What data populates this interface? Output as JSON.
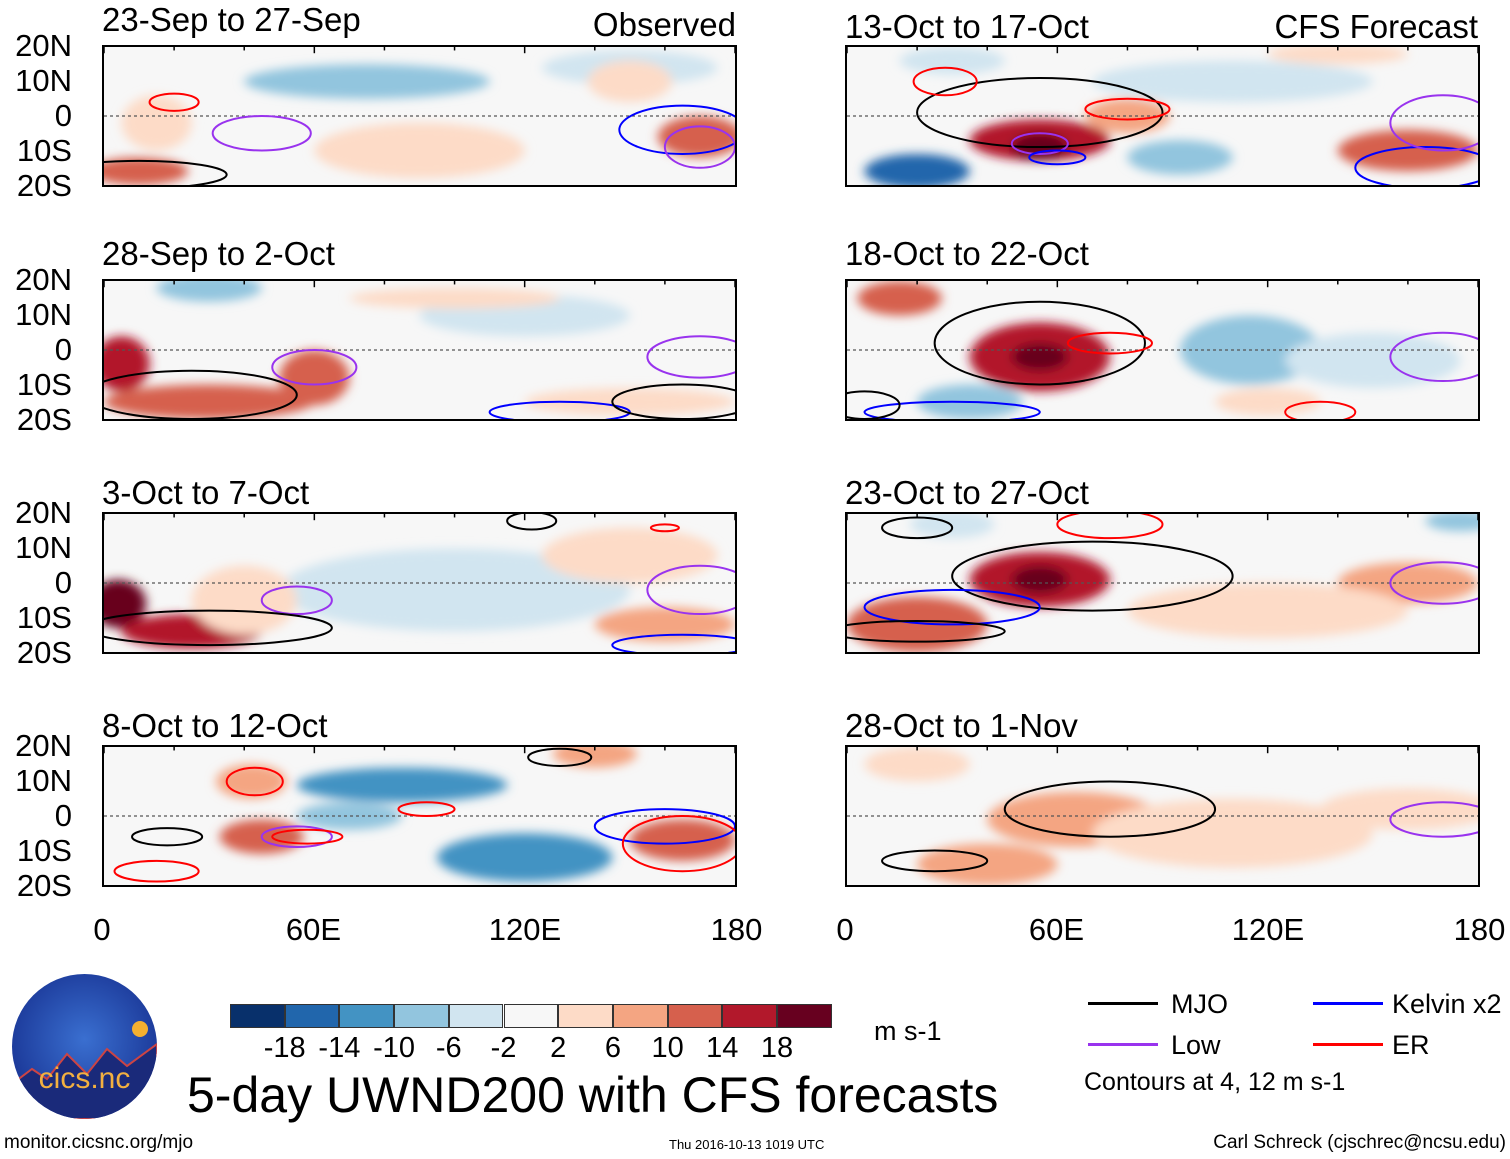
{
  "header": {
    "left_tag": "Observed",
    "right_tag": "CFS Forecast"
  },
  "colors": {
    "-18": "#08306b",
    "-14": "#2166ac",
    "-10": "#4393c3",
    "-6": "#92c5de",
    "-2": "#d1e5f0",
    "0": "#f7f7f7",
    "2": "#fddbc7",
    "6": "#f4a582",
    "10": "#d6604d",
    "14": "#b2182b",
    "18": "#67001f",
    "MJO": "#000000",
    "Kelvin": "#0000ff",
    "Low": "#9933ee",
    "ER": "#ff0000"
  },
  "axes": {
    "y_ticks": [
      "20N",
      "10N",
      "0",
      "10S",
      "20S"
    ],
    "x_ticks": [
      "0",
      "60E",
      "120E",
      "180"
    ]
  },
  "chart_data": {
    "type": "heatmap",
    "title": "5-day UWND200 with CFS forecasts",
    "units": "m s-1",
    "lon_range": [
      0,
      180
    ],
    "lat_range": [
      -20,
      20
    ],
    "colorbar": {
      "levels": [
        "-18",
        "-14",
        "-10",
        "-6",
        "-2",
        "2",
        "6",
        "10",
        "14",
        "18"
      ],
      "colors": [
        "#08306b",
        "#2166ac",
        "#4393c3",
        "#92c5de",
        "#d1e5f0",
        "#f7f7f7",
        "#fddbc7",
        "#f4a582",
        "#d6604d",
        "#b2182b",
        "#67001f"
      ]
    },
    "panels": [
      {
        "title": "23-Sep to 27-Sep",
        "type": "Observed",
        "anoms": [
          [
            75,
            10,
            35,
            5,
            -6
          ],
          [
            150,
            14,
            25,
            5,
            -2
          ],
          [
            170,
            -6,
            12,
            6,
            10
          ],
          [
            10,
            -16,
            14,
            4,
            10
          ],
          [
            90,
            -10,
            30,
            8,
            2
          ],
          [
            150,
            10,
            12,
            6,
            2
          ],
          [
            15,
            -2,
            10,
            8,
            2
          ]
        ],
        "contours": [
          [
            "ER",
            20,
            4,
            7,
            2.5
          ],
          [
            "Low",
            45,
            -5,
            14,
            5
          ],
          [
            "Kelvin",
            165,
            -4,
            18,
            7
          ],
          [
            "MJO",
            10,
            -17,
            25,
            4
          ],
          [
            "Low",
            170,
            -9,
            10,
            6
          ]
        ]
      },
      {
        "title": "28-Sep to 2-Oct",
        "type": "Observed",
        "anoms": [
          [
            5,
            -4,
            8,
            8,
            14
          ],
          [
            30,
            -15,
            30,
            5,
            10
          ],
          [
            60,
            -8,
            10,
            8,
            10
          ],
          [
            30,
            18,
            15,
            4,
            -6
          ],
          [
            120,
            10,
            30,
            6,
            -2
          ],
          [
            150,
            -15,
            30,
            4,
            2
          ],
          [
            100,
            15,
            30,
            3,
            2
          ]
        ],
        "contours": [
          [
            "MJO",
            25,
            -13,
            30,
            7
          ],
          [
            "Low",
            60,
            -5,
            12,
            5
          ],
          [
            "Kelvin",
            130,
            -18,
            20,
            3
          ],
          [
            "MJO",
            165,
            -15,
            20,
            5
          ],
          [
            "Low",
            170,
            -2,
            15,
            6
          ]
        ]
      },
      {
        "title": "3-Oct to 7-Oct",
        "type": "Observed",
        "anoms": [
          [
            4,
            -6,
            8,
            7,
            18
          ],
          [
            25,
            -14,
            20,
            5,
            14
          ],
          [
            100,
            -2,
            50,
            12,
            -2
          ],
          [
            160,
            -12,
            20,
            5,
            6
          ],
          [
            150,
            8,
            25,
            8,
            2
          ],
          [
            40,
            -5,
            15,
            10,
            2
          ]
        ],
        "contours": [
          [
            "Low",
            55,
            -5,
            10,
            4
          ],
          [
            "MJO",
            30,
            -13,
            35,
            5
          ],
          [
            "MJO",
            122,
            18,
            7,
            2.5
          ],
          [
            "Kelvin",
            165,
            -18,
            20,
            3
          ],
          [
            "Low",
            170,
            -2,
            15,
            7
          ],
          [
            "ER",
            160,
            16,
            4,
            1
          ]
        ]
      },
      {
        "title": "8-Oct to 12-Oct",
        "type": "Observed",
        "anoms": [
          [
            85,
            9,
            30,
            5,
            -10
          ],
          [
            120,
            -12,
            25,
            7,
            -10
          ],
          [
            45,
            -6,
            12,
            5,
            10
          ],
          [
            165,
            -7,
            15,
            6,
            10
          ],
          [
            42,
            10,
            10,
            5,
            6
          ],
          [
            140,
            18,
            12,
            4,
            6
          ],
          [
            70,
            0,
            15,
            4,
            -6
          ]
        ],
        "contours": [
          [
            "ER",
            43,
            10,
            8,
            4
          ],
          [
            "Low",
            55,
            -6,
            10,
            3
          ],
          [
            "ER",
            58,
            -6,
            10,
            2
          ],
          [
            "MJO",
            18,
            -6,
            10,
            2.5
          ],
          [
            "ER",
            92,
            2,
            8,
            2
          ],
          [
            "Kelvin",
            160,
            -3,
            20,
            5
          ],
          [
            "ER",
            165,
            -8,
            17,
            8
          ],
          [
            "MJO",
            130,
            17,
            9,
            2.5
          ],
          [
            "ER",
            15,
            -16,
            12,
            3
          ]
        ]
      },
      {
        "title": "13-Oct to 17-Oct",
        "type": "CFS Forecast",
        "anoms": [
          [
            55,
            -7,
            20,
            6,
            14
          ],
          [
            55,
            -9,
            8,
            4,
            18
          ],
          [
            20,
            -16,
            15,
            5,
            -14
          ],
          [
            95,
            -12,
            15,
            5,
            -6
          ],
          [
            160,
            -10,
            20,
            6,
            10
          ],
          [
            80,
            0,
            12,
            5,
            6
          ],
          [
            30,
            16,
            15,
            4,
            -2
          ],
          [
            110,
            10,
            40,
            6,
            -2
          ],
          [
            140,
            18,
            20,
            3,
            2
          ]
        ],
        "contours": [
          [
            "MJO",
            55,
            1,
            35,
            10
          ],
          [
            "Low",
            55,
            -8,
            8,
            3
          ],
          [
            "ER",
            28,
            10,
            9,
            4
          ],
          [
            "ER",
            80,
            2,
            12,
            3
          ],
          [
            "Kelvin",
            60,
            -12,
            8,
            2
          ],
          [
            "Kelvin",
            165,
            -15,
            20,
            6
          ],
          [
            "Low",
            170,
            -2,
            15,
            8
          ]
        ]
      },
      {
        "title": "18-Oct to 22-Oct",
        "type": "CFS Forecast",
        "anoms": [
          [
            55,
            -2,
            20,
            10,
            14
          ],
          [
            55,
            -2,
            8,
            4,
            18
          ],
          [
            15,
            15,
            12,
            5,
            10
          ],
          [
            35,
            -15,
            15,
            5,
            -6
          ],
          [
            115,
            0,
            20,
            10,
            -6
          ],
          [
            150,
            -3,
            25,
            8,
            -2
          ],
          [
            120,
            -15,
            15,
            4,
            2
          ]
        ],
        "contours": [
          [
            "MJO",
            55,
            2,
            30,
            12
          ],
          [
            "ER",
            75,
            2,
            12,
            3
          ],
          [
            "Kelvin",
            30,
            -18,
            25,
            3
          ],
          [
            "ER",
            135,
            -18,
            10,
            3
          ],
          [
            "Low",
            170,
            -2,
            15,
            7
          ],
          [
            "MJO",
            5,
            -16,
            10,
            4
          ]
        ]
      },
      {
        "title": "23-Oct to 27-Oct",
        "type": "CFS Forecast",
        "anoms": [
          [
            55,
            1,
            20,
            8,
            14
          ],
          [
            55,
            1,
            8,
            4,
            18
          ],
          [
            20,
            -12,
            20,
            8,
            10
          ],
          [
            160,
            0,
            20,
            6,
            6
          ],
          [
            120,
            -8,
            40,
            8,
            2
          ],
          [
            30,
            17,
            12,
            4,
            -2
          ],
          [
            175,
            18,
            10,
            3,
            -6
          ]
        ],
        "contours": [
          [
            "MJO",
            70,
            2,
            40,
            10
          ],
          [
            "Kelvin",
            30,
            -7,
            25,
            5
          ],
          [
            "MJO",
            20,
            -14,
            25,
            3
          ],
          [
            "ER",
            75,
            17,
            15,
            4
          ],
          [
            "Low",
            170,
            0,
            15,
            6
          ],
          [
            "MJO",
            20,
            16,
            10,
            3
          ]
        ]
      },
      {
        "title": "28-Oct to 1-Nov",
        "type": "CFS Forecast",
        "anoms": [
          [
            65,
            -1,
            25,
            8,
            6
          ],
          [
            40,
            -14,
            20,
            6,
            6
          ],
          [
            160,
            2,
            25,
            6,
            2
          ],
          [
            110,
            -5,
            40,
            10,
            2
          ],
          [
            20,
            15,
            15,
            5,
            2
          ]
        ],
        "contours": [
          [
            "MJO",
            75,
            2,
            30,
            8
          ],
          [
            "MJO",
            25,
            -13,
            15,
            3
          ],
          [
            "Low",
            170,
            -1,
            15,
            5
          ]
        ]
      }
    ]
  },
  "legend": {
    "mjo": "MJO",
    "kelvin": "Kelvin x2",
    "low": "Low",
    "er": "ER",
    "contours_note": "Contours at 4, 12 m s-1",
    "units": "m s-1"
  },
  "footer": {
    "title": "5-day UWND200 with CFS forecasts",
    "url": "monitor.cicsnc.org/mjo",
    "timestamp": "Thu 2016-10-13 1019 UTC",
    "author": "Carl Schreck (cjschrec@ncsu.edu)",
    "logo_text": "cics.nc",
    "logo_ring": "Cooperative Institute for Climate and Satellites"
  }
}
